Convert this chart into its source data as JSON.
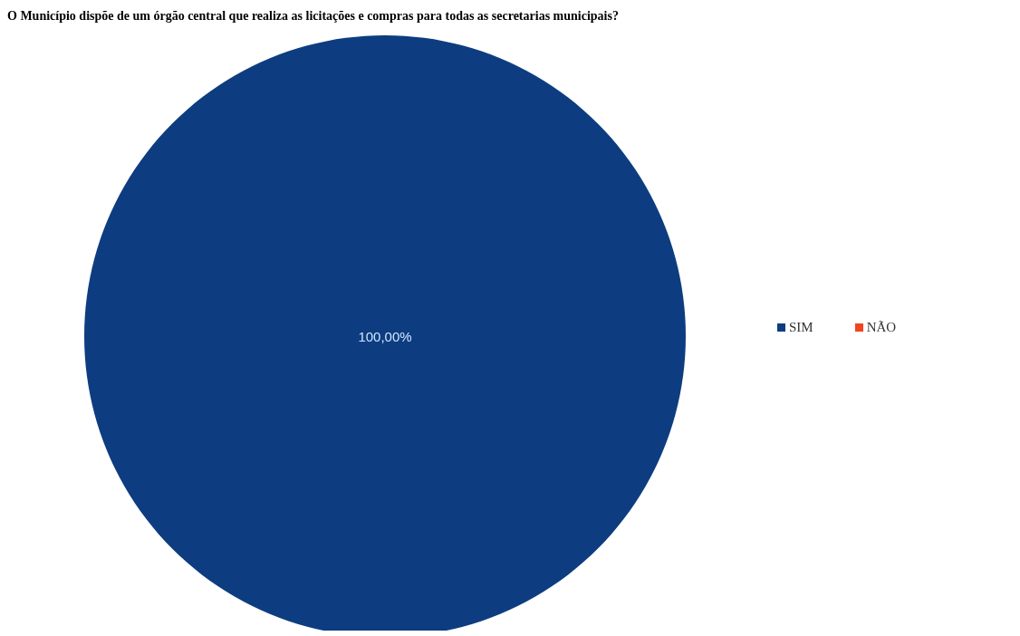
{
  "chart_data": {
    "type": "pie",
    "title": "O Município dispõe de um órgão central que realiza as licitações e compras para todas as secretarias municipais?",
    "categories": [
      "SIM",
      "NÃO"
    ],
    "values": [
      100,
      0
    ],
    "colors": [
      "#0d3d80",
      "#f4431f"
    ],
    "value_labels": [
      "100,00%",
      null
    ],
    "legend": "right"
  }
}
